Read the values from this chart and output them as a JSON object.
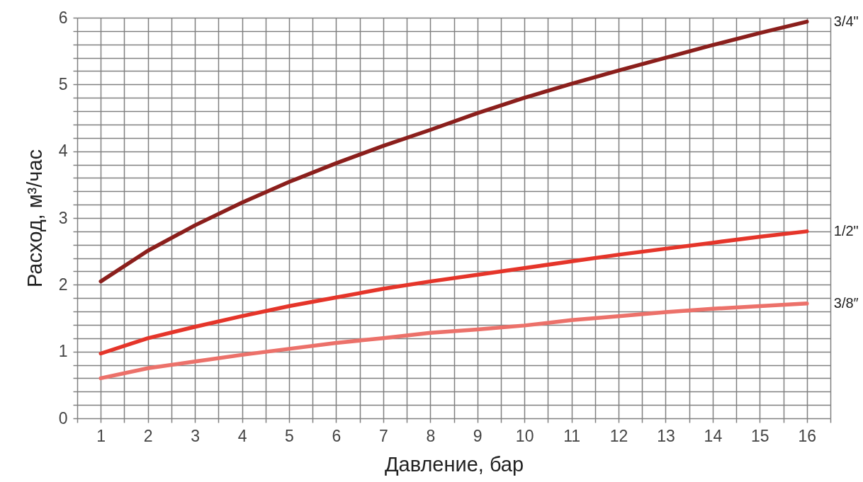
{
  "chart_data": {
    "type": "line",
    "xlabel": "Давление, бар",
    "ylabel": "Расход, м³/час",
    "x": [
      1,
      2,
      3,
      4,
      5,
      6,
      7,
      8,
      9,
      10,
      11,
      12,
      13,
      14,
      15,
      16
    ],
    "series": [
      {
        "name": "3/4\"",
        "color": "#8b1f1c",
        "values": [
          2.05,
          2.51,
          2.89,
          3.23,
          3.54,
          3.82,
          4.08,
          4.32,
          4.57,
          4.8,
          5.01,
          5.21,
          5.4,
          5.59,
          5.77,
          5.94
        ]
      },
      {
        "name": "1/2\"",
        "color": "#e5352a",
        "values": [
          0.97,
          1.2,
          1.37,
          1.53,
          1.68,
          1.81,
          1.94,
          2.05,
          2.15,
          2.25,
          2.35,
          2.45,
          2.54,
          2.63,
          2.72,
          2.8
        ]
      },
      {
        "name": "3/8″",
        "color": "#ec716a",
        "values": [
          0.6,
          0.75,
          0.85,
          0.95,
          1.04,
          1.13,
          1.2,
          1.28,
          1.33,
          1.39,
          1.47,
          1.53,
          1.59,
          1.64,
          1.68,
          1.72
        ]
      }
    ],
    "xlim": [
      0.5,
      16.5
    ],
    "xticks": [
      {
        "value": 0.5,
        "label": null
      },
      1,
      {
        "value": 1.5,
        "label": null
      },
      2,
      {
        "value": 2.5,
        "label": null
      },
      3,
      {
        "value": 3.5,
        "label": null
      },
      4,
      {
        "value": 4.5,
        "label": null
      },
      5,
      {
        "value": 5.5,
        "label": null
      },
      6,
      {
        "value": 6.5,
        "label": null
      },
      7,
      {
        "value": 7.5,
        "label": null
      },
      8,
      {
        "value": 8.5,
        "label": null
      },
      9,
      {
        "value": 9.5,
        "label": null
      },
      10,
      {
        "value": 10.5,
        "label": null
      },
      11,
      {
        "value": 11.5,
        "label": null
      },
      12,
      {
        "value": 12.5,
        "label": null
      },
      13,
      {
        "value": 13.5,
        "label": null
      },
      14,
      {
        "value": 14.5,
        "label": null
      },
      15,
      {
        "value": 15.5,
        "label": null
      },
      16,
      {
        "value": 16.5,
        "label": null
      }
    ],
    "ylim": [
      0,
      6
    ],
    "yticks": [
      0,
      {
        "value": 0.2,
        "label": null
      },
      {
        "value": 0.4,
        "label": null
      },
      {
        "value": 0.6,
        "label": null
      },
      {
        "value": 0.8,
        "label": null
      },
      1,
      {
        "value": 1.2,
        "label": null
      },
      {
        "value": 1.4,
        "label": null
      },
      {
        "value": 1.6,
        "label": null
      },
      {
        "value": 1.8,
        "label": null
      },
      2,
      {
        "value": 2.2,
        "label": null
      },
      {
        "value": 2.4,
        "label": null
      },
      {
        "value": 2.6,
        "label": null
      },
      {
        "value": 2.8,
        "label": null
      },
      3,
      {
        "value": 3.2,
        "label": null
      },
      {
        "value": 3.4,
        "label": null
      },
      {
        "value": 3.6,
        "label": null
      },
      {
        "value": 3.8,
        "label": null
      },
      4,
      {
        "value": 4.2,
        "label": null
      },
      {
        "value": 4.4,
        "label": null
      },
      {
        "value": 4.6,
        "label": null
      },
      {
        "value": 4.8,
        "label": null
      },
      5,
      {
        "value": 5.2,
        "label": null
      },
      {
        "value": 5.4,
        "label": null
      },
      {
        "value": 5.6,
        "label": null
      },
      {
        "value": 5.8,
        "label": null
      },
      6
    ],
    "grid": true,
    "legend": false,
    "marker": "none",
    "line_style": "solid"
  }
}
